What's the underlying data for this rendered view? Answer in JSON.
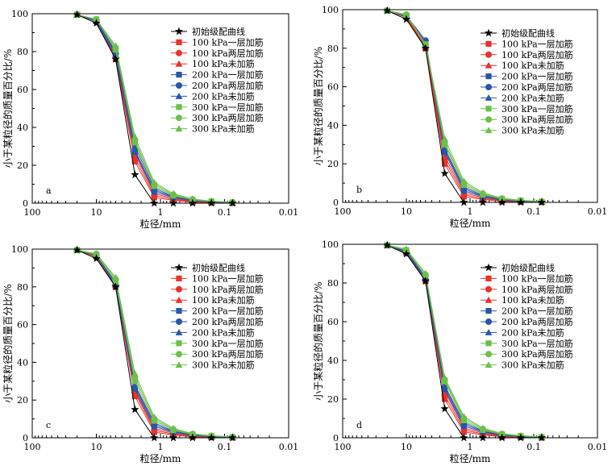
{
  "legend_items": [
    {
      "label": "初始级配曲线",
      "color": "#000000",
      "marker": "star"
    },
    {
      "label": "100 kPa一层加筋",
      "color": "#e8322e",
      "marker": "square"
    },
    {
      "label": "100 kPa两层加筋",
      "color": "#e8322e",
      "marker": "circle"
    },
    {
      "label": "100 kPa未加筋",
      "color": "#e8322e",
      "marker": "triangle"
    },
    {
      "label": "200 kPa一层加筋",
      "color": "#2b55a8",
      "marker": "square"
    },
    {
      "label": "200 kPa两层加筋",
      "color": "#2b55a8",
      "marker": "circle"
    },
    {
      "label": "200 kPa未加筋",
      "color": "#2b55a8",
      "marker": "triangle"
    },
    {
      "label": "300 kPa一层加筋",
      "color": "#6cc04a",
      "marker": "square"
    },
    {
      "label": "300 kPa两层加筋",
      "color": "#6cc04a",
      "marker": "circle"
    },
    {
      "label": "300 kPa未加筋",
      "color": "#6cc04a",
      "marker": "triangle"
    }
  ],
  "chart_data": [
    {
      "type": "line",
      "panel": "a",
      "xlabel": "粒径/mm",
      "ylabel": "小于某粒径的质量百分比/%",
      "x_scale": "log",
      "x_reversed": true,
      "xlim": [
        100,
        0.01
      ],
      "ylim": [
        0,
        100
      ],
      "x_ticks": [
        "100",
        "10",
        "1",
        "0.1",
        "0.01"
      ],
      "y_ticks": [
        "0",
        "20",
        "40",
        "60",
        "80",
        "100"
      ],
      "x": [
        20,
        10,
        5,
        2.5,
        1.25,
        0.63,
        0.315,
        0.16,
        0.075
      ],
      "series": [
        {
          "name": "初始级配曲线",
          "values": [
            99.5,
            95,
            76,
            15,
            0,
            0,
            0,
            0,
            0
          ]
        },
        {
          "name": "100 kPa一层加筋",
          "values": [
            99.5,
            96,
            76,
            22,
            3,
            1.5,
            0.5,
            0.3,
            0.1
          ]
        },
        {
          "name": "100 kPa两层加筋",
          "values": [
            99.5,
            96,
            77,
            24,
            4,
            2,
            0.8,
            0.4,
            0.2
          ]
        },
        {
          "name": "100 kPa未加筋",
          "values": [
            99.5,
            96,
            78,
            26,
            5,
            2.5,
            1,
            0.5,
            0.2
          ]
        },
        {
          "name": "200 kPa一层加筋",
          "values": [
            99.5,
            96,
            78,
            27,
            6,
            3,
            1.2,
            0.6,
            0.3
          ]
        },
        {
          "name": "200 kPa两层加筋",
          "values": [
            99.5,
            96.5,
            79,
            28,
            7,
            3.2,
            1.4,
            0.7,
            0.3
          ]
        },
        {
          "name": "200 kPa未加筋",
          "values": [
            99.5,
            96.5,
            80,
            30,
            8,
            3.5,
            1.6,
            0.8,
            0.4
          ]
        },
        {
          "name": "300 kPa一层加筋",
          "values": [
            99.5,
            97,
            81,
            32,
            9,
            4,
            1.8,
            0.9,
            0.4
          ]
        },
        {
          "name": "300 kPa两层加筋",
          "values": [
            99.5,
            97,
            82,
            33,
            10,
            4.5,
            2,
            1,
            0.5
          ]
        },
        {
          "name": "300 kPa未加筋",
          "values": [
            99.5,
            97,
            83,
            35,
            11,
            5,
            2.2,
            1.1,
            0.5
          ]
        }
      ],
      "legend": "upper right"
    },
    {
      "type": "line",
      "panel": "b",
      "xlabel": "粒径/mm",
      "ylabel": "小于某粒径的质量百分比/%",
      "x_scale": "log",
      "x_reversed": true,
      "xlim": [
        100,
        0.01
      ],
      "ylim": [
        0,
        100
      ],
      "x_ticks": [
        "100",
        "10",
        "1",
        "0.1",
        "0.01"
      ],
      "y_ticks": [
        "0",
        "20",
        "40",
        "60",
        "80",
        "100"
      ],
      "x": [
        20,
        10,
        5,
        2.5,
        1.25,
        0.63,
        0.315,
        0.16,
        0.075
      ],
      "series": [
        {
          "name": "初始级配曲线",
          "values": [
            99.5,
            95,
            80,
            15,
            0,
            0,
            0,
            0,
            0
          ]
        },
        {
          "name": "100 kPa一层加筋",
          "values": [
            99.5,
            96,
            80,
            20,
            3,
            1.5,
            0.5,
            0.3,
            0.1
          ]
        },
        {
          "name": "100 kPa两层加筋",
          "values": [
            99.5,
            96,
            80,
            22,
            4,
            2,
            0.8,
            0.4,
            0.2
          ]
        },
        {
          "name": "100 kPa未加筋",
          "values": [
            99.5,
            96.5,
            81,
            24,
            5,
            2.5,
            1,
            0.5,
            0.2
          ]
        },
        {
          "name": "200 kPa一层加筋",
          "values": [
            99.5,
            96.5,
            83,
            26,
            6,
            3,
            1.2,
            0.6,
            0.3
          ]
        },
        {
          "name": "200 kPa两层加筋",
          "values": [
            99.5,
            97,
            84,
            27,
            7,
            3.2,
            1.4,
            0.7,
            0.3
          ]
        },
        {
          "name": "200 kPa未加筋",
          "values": [
            99.5,
            97,
            83,
            28,
            8,
            3.5,
            1.6,
            0.8,
            0.4
          ]
        },
        {
          "name": "300 kPa一层加筋",
          "values": [
            99.5,
            97,
            82,
            30,
            9,
            4,
            1.8,
            0.9,
            0.4
          ]
        },
        {
          "name": "300 kPa两层加筋",
          "values": [
            99.5,
            97.5,
            82,
            31,
            10,
            4.5,
            2,
            1,
            0.5
          ]
        },
        {
          "name": "300 kPa未加筋",
          "values": [
            99.5,
            97.5,
            82,
            33,
            11,
            5,
            2.2,
            1.1,
            0.5
          ]
        }
      ],
      "legend": "upper right"
    },
    {
      "type": "line",
      "panel": "c",
      "xlabel": "粒径/mm",
      "ylabel": "小于某粒径的质量百分比/%",
      "x_scale": "log",
      "x_reversed": true,
      "xlim": [
        100,
        0.01
      ],
      "ylim": [
        0,
        100
      ],
      "x_ticks": [
        "100",
        "10",
        "1",
        "0.1",
        "0.01"
      ],
      "y_ticks": [
        "0",
        "20",
        "40",
        "60",
        "80",
        "100"
      ],
      "x": [
        20,
        10,
        5,
        2.5,
        1.25,
        0.63,
        0.315,
        0.16,
        0.075
      ],
      "series": [
        {
          "name": "初始级配曲线",
          "values": [
            99.5,
            95,
            80,
            15,
            0,
            0,
            0,
            0,
            0
          ]
        },
        {
          "name": "100 kPa一层加筋",
          "values": [
            99.5,
            96,
            80,
            22,
            3,
            1.5,
            0.5,
            0.3,
            0.1
          ]
        },
        {
          "name": "100 kPa两层加筋",
          "values": [
            99.5,
            96,
            80,
            24,
            4,
            2,
            0.8,
            0.4,
            0.2
          ]
        },
        {
          "name": "100 kPa未加筋",
          "values": [
            99.5,
            96.5,
            81,
            25,
            5,
            2.5,
            1,
            0.5,
            0.2
          ]
        },
        {
          "name": "200 kPa一层加筋",
          "values": [
            99.5,
            96.5,
            81,
            26,
            6,
            3,
            1.2,
            0.6,
            0.3
          ]
        },
        {
          "name": "200 kPa两层加筋",
          "values": [
            99.5,
            97,
            81,
            27,
            7,
            3.2,
            1.4,
            0.7,
            0.3
          ]
        },
        {
          "name": "200 kPa未加筋",
          "values": [
            99.5,
            97,
            82,
            28,
            8,
            3.5,
            1.6,
            0.8,
            0.4
          ]
        },
        {
          "name": "300 kPa一层加筋",
          "values": [
            99.5,
            97,
            83,
            30,
            9,
            4,
            1.8,
            0.9,
            0.4
          ]
        },
        {
          "name": "300 kPa两层加筋",
          "values": [
            99.5,
            97.5,
            84,
            32,
            10,
            4.5,
            2,
            1,
            0.5
          ]
        },
        {
          "name": "300 kPa未加筋",
          "values": [
            99.5,
            97.5,
            85,
            34,
            11,
            5,
            2.2,
            1.1,
            0.5
          ]
        }
      ],
      "legend": "upper right"
    },
    {
      "type": "line",
      "panel": "d",
      "xlabel": "粒径/mm",
      "ylabel": "小于某粒径的质量百分比/%",
      "x_scale": "log",
      "x_reversed": true,
      "xlim": [
        100,
        0.01
      ],
      "ylim": [
        0,
        100
      ],
      "x_ticks": [
        "100",
        "10",
        "1",
        "0.1",
        "0.01"
      ],
      "y_ticks": [
        "0",
        "20",
        "40",
        "60",
        "80",
        "100"
      ],
      "x": [
        20,
        10,
        5,
        2.5,
        1.25,
        0.63,
        0.315,
        0.16,
        0.075
      ],
      "series": [
        {
          "name": "初始级配曲线",
          "values": [
            99.5,
            95,
            81,
            15,
            0,
            0,
            0,
            0,
            0
          ]
        },
        {
          "name": "100 kPa一层加筋",
          "values": [
            99.5,
            95.5,
            81,
            20,
            3,
            1.5,
            0.5,
            0.3,
            0.1
          ]
        },
        {
          "name": "100 kPa两层加筋",
          "values": [
            99.5,
            95.5,
            81,
            22,
            4,
            2,
            0.8,
            0.4,
            0.2
          ]
        },
        {
          "name": "100 kPa未加筋",
          "values": [
            99.5,
            96,
            82,
            24,
            5,
            2.5,
            1,
            0.5,
            0.2
          ]
        },
        {
          "name": "200 kPa一层加筋",
          "values": [
            99.5,
            96,
            82,
            25,
            6,
            3,
            1.2,
            0.6,
            0.3
          ]
        },
        {
          "name": "200 kPa两层加筋",
          "values": [
            99.5,
            96.5,
            82,
            26,
            7,
            3.2,
            1.4,
            0.7,
            0.3
          ]
        },
        {
          "name": "200 kPa未加筋",
          "values": [
            99.5,
            96.5,
            83,
            27,
            8,
            3.5,
            1.6,
            0.8,
            0.4
          ]
        },
        {
          "name": "300 kPa一层加筋",
          "values": [
            99.5,
            97,
            84,
            29,
            9,
            4,
            1.8,
            0.9,
            0.4
          ]
        },
        {
          "name": "300 kPa两层加筋",
          "values": [
            99.5,
            97,
            84,
            30,
            10,
            4.5,
            2,
            1,
            0.5
          ]
        },
        {
          "name": "300 kPa未加筋",
          "values": [
            99.5,
            97.5,
            85,
            31,
            11,
            5,
            2.2,
            1.1,
            0.5
          ]
        }
      ],
      "legend": "upper right"
    }
  ]
}
